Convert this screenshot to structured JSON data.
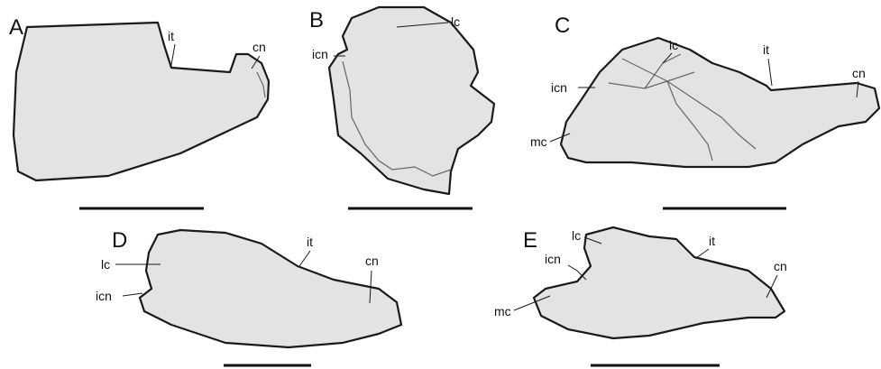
{
  "panels": [
    {
      "letter": "A",
      "labels": [
        "it",
        "cn"
      ]
    },
    {
      "letter": "B",
      "labels": [
        "lc",
        "icn"
      ]
    },
    {
      "letter": "C",
      "labels": [
        "lc",
        "it",
        "icn",
        "cn",
        "mc"
      ]
    },
    {
      "letter": "D",
      "labels": [
        "lc",
        "icn",
        "it",
        "cn"
      ]
    },
    {
      "letter": "E",
      "labels": [
        "lc",
        "icn",
        "it",
        "cn",
        "mc"
      ]
    }
  ]
}
